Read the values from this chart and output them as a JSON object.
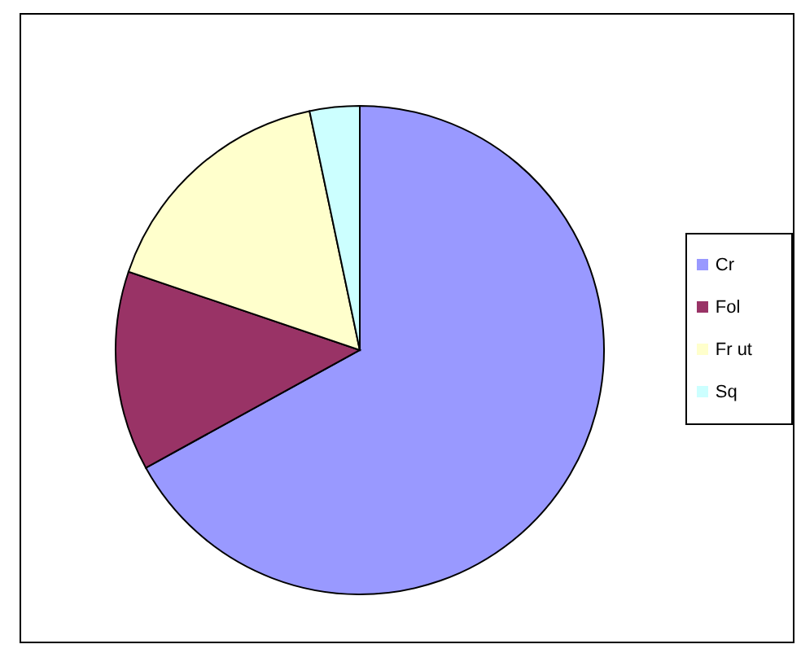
{
  "chart_data": {
    "type": "pie",
    "categories": [
      "Cr",
      "Fol",
      "Fr ut",
      "Sq"
    ],
    "values": [
      67,
      13.2,
      16.5,
      3.3
    ],
    "colors": [
      "#9999ff",
      "#993366",
      "#ffffcc",
      "#ccffff"
    ],
    "legend": "right"
  }
}
